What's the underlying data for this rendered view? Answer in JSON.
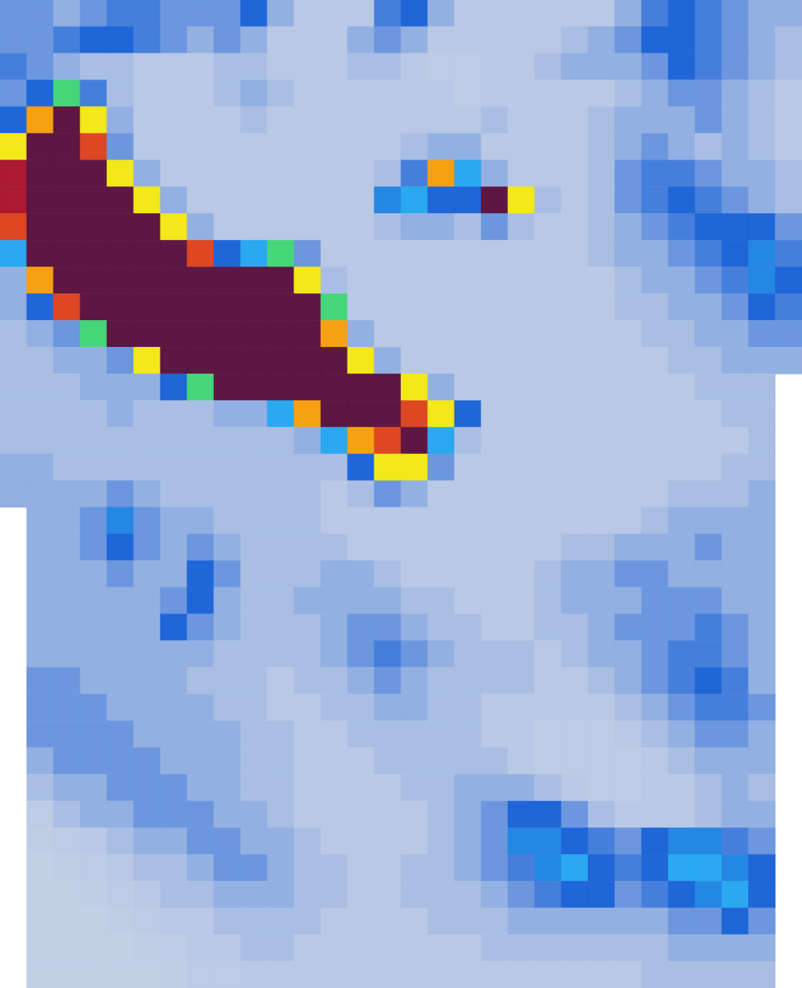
{
  "chart_data": {
    "type": "heatmap",
    "tick_labels": false,
    "color_range": [
      0,
      1
    ],
    "cells": [
      [
        0.2,
        0.2,
        0.15,
        0.2,
        0.25,
        0.25,
        0.2,
        0.2,
        0.2,
        0.3,
        0.15,
        0.1,
        0.1,
        0.1,
        0.25,
        0.3,
        0.15,
        0.1,
        0.1,
        0.1,
        0.1,
        0.1,
        0.1,
        0.15,
        0.25,
        0.3,
        0.25,
        0.2,
        0.15,
        0.15
      ],
      [
        0.2,
        0.2,
        0.25,
        0.3,
        0.3,
        0.25,
        0.2,
        0.15,
        0.2,
        0.15,
        0.1,
        0.1,
        0.1,
        0.15,
        0.2,
        0.15,
        0.1,
        0.1,
        0.1,
        0.1,
        0.1,
        0.12,
        0.15,
        0.2,
        0.3,
        0.3,
        0.25,
        0.2,
        0.15,
        0.12
      ],
      [
        0.25,
        0.2,
        0.15,
        0.12,
        0.12,
        0.1,
        0.1,
        0.1,
        0.12,
        0.12,
        0.1,
        0.1,
        0.1,
        0.12,
        0.12,
        0.1,
        0.08,
        0.08,
        0.1,
        0.1,
        0.12,
        0.15,
        0.15,
        0.15,
        0.2,
        0.3,
        0.25,
        0.2,
        0.15,
        0.12
      ],
      [
        0.2,
        0.3,
        0.5,
        0.25,
        0.12,
        0.1,
        0.1,
        0.1,
        0.12,
        0.15,
        0.12,
        0.1,
        0.1,
        0.1,
        0.1,
        0.1,
        0.1,
        0.08,
        0.1,
        0.1,
        0.1,
        0.1,
        0.1,
        0.12,
        0.15,
        0.2,
        0.2,
        0.15,
        0.12,
        0.1
      ],
      [
        0.3,
        0.7,
        1,
        0.6,
        0.15,
        0.1,
        0.1,
        0.1,
        0.1,
        0.12,
        0.1,
        0.1,
        0.1,
        0.1,
        0.1,
        0.1,
        0.1,
        0.1,
        0.12,
        0.1,
        0.1,
        0.1,
        0.12,
        0.15,
        0.15,
        0.15,
        0.2,
        0.15,
        0.12,
        0.1
      ],
      [
        0.6,
        1,
        1,
        0.8,
        0.2,
        0.1,
        0.1,
        0.1,
        0.1,
        0.1,
        0.1,
        0.1,
        0.1,
        0.1,
        0.1,
        0.12,
        0.15,
        0.15,
        0.1,
        0.1,
        0.1,
        0.1,
        0.12,
        0.15,
        0.2,
        0.15,
        0.12,
        0.15,
        0.12,
        0.1
      ],
      [
        0.9,
        1,
        1,
        1,
        0.6,
        0.15,
        0.1,
        0.1,
        0.1,
        0.1,
        0.1,
        0.1,
        0.1,
        0.1,
        0.12,
        0.25,
        0.7,
        0.4,
        0.15,
        0.1,
        0.1,
        0.1,
        0.12,
        0.2,
        0.25,
        0.25,
        0.2,
        0.15,
        0.15,
        0.12
      ],
      [
        0.9,
        1,
        1,
        1,
        1,
        0.6,
        0.15,
        0.1,
        0.1,
        0.1,
        0.1,
        0.1,
        0.1,
        0.1,
        0.35,
        0.4,
        0.3,
        0.3,
        1,
        0.6,
        0.12,
        0.1,
        0.12,
        0.2,
        0.25,
        0.3,
        0.25,
        0.2,
        0.15,
        0.12
      ],
      [
        0.8,
        1,
        1,
        1,
        1,
        1,
        0.6,
        0.15,
        0.1,
        0.1,
        0.1,
        0.1,
        0.1,
        0.1,
        0.12,
        0.15,
        0.15,
        0.12,
        0.2,
        0.12,
        0.1,
        0.1,
        0.12,
        0.15,
        0.2,
        0.25,
        0.3,
        0.3,
        0.3,
        0.2
      ],
      [
        0.4,
        1,
        1,
        1,
        1,
        1,
        1,
        0.8,
        0.3,
        0.4,
        0.5,
        0.2,
        0.1,
        0.1,
        0.1,
        0.1,
        0.1,
        0.1,
        0.1,
        0.1,
        0.1,
        0.1,
        0.12,
        0.15,
        0.15,
        0.2,
        0.25,
        0.3,
        0.35,
        0.25
      ],
      [
        0.15,
        0.7,
        1,
        1,
        1,
        1,
        1,
        1,
        1,
        1,
        1,
        0.6,
        0.12,
        0.1,
        0.1,
        0.1,
        0.1,
        0.1,
        0.1,
        0.1,
        0.1,
        0.1,
        0.1,
        0.12,
        0.15,
        0.15,
        0.2,
        0.25,
        0.35,
        0.3
      ],
      [
        0.15,
        0.3,
        0.8,
        1,
        1,
        1,
        1,
        1,
        1,
        1,
        1,
        1,
        0.5,
        0.1,
        0.1,
        0.1,
        0.1,
        0.1,
        0.1,
        0.1,
        0.1,
        0.1,
        0.1,
        0.12,
        0.12,
        0.15,
        0.15,
        0.2,
        0.3,
        0.25
      ],
      [
        0.12,
        0.15,
        0.2,
        0.5,
        1,
        1,
        1,
        1,
        1,
        1,
        1,
        1,
        0.7,
        0.15,
        0.1,
        0.1,
        0.1,
        0.1,
        0.1,
        0.1,
        0.1,
        0.1,
        0.1,
        0.1,
        0.12,
        0.12,
        0.15,
        0.15,
        0.2,
        0.2
      ],
      [
        0.12,
        0.12,
        0.15,
        0.15,
        0.2,
        0.6,
        1,
        1,
        1,
        1,
        1,
        1,
        1,
        0.6,
        0.15,
        0.1,
        0.1,
        0.1,
        0.1,
        0.1,
        0.1,
        0.1,
        0.1,
        0.1,
        0.1,
        0.12,
        0.12,
        0.15,
        0.15,
        0.15
      ],
      [
        0.12,
        0.12,
        0.12,
        0.15,
        0.15,
        0.15,
        0.3,
        0.5,
        1,
        1,
        1,
        1,
        1,
        1,
        1,
        0.6,
        0.15,
        0.1,
        0.1,
        0.1,
        0.1,
        0.1,
        0.1,
        0.1,
        0.1,
        0.1,
        0.12,
        0.12,
        0.12,
        null
      ],
      [
        0.12,
        0.12,
        0.12,
        0.12,
        0.15,
        0.12,
        0.12,
        0.12,
        0.15,
        0.15,
        0.4,
        0.7,
        1,
        1,
        1,
        0.8,
        0.6,
        0.3,
        0.1,
        0.1,
        0.1,
        0.1,
        0.1,
        0.1,
        0.1,
        0.1,
        0.1,
        0.12,
        0.12,
        null
      ],
      [
        0.12,
        0.12,
        0.12,
        0.12,
        0.12,
        0.12,
        0.12,
        0.12,
        0.12,
        0.12,
        0.12,
        0.15,
        0.4,
        0.7,
        0.8,
        1,
        0.4,
        0.12,
        0.1,
        0.1,
        0.1,
        0.1,
        0.1,
        0.1,
        0.1,
        0.1,
        0.1,
        0.1,
        0.12,
        null
      ],
      [
        0.15,
        0.15,
        0.12,
        0.12,
        0.12,
        0.12,
        0.12,
        0.12,
        0.12,
        0.12,
        0.12,
        0.12,
        0.12,
        0.3,
        0.6,
        0.6,
        0.2,
        0.1,
        0.1,
        0.1,
        0.1,
        0.1,
        0.1,
        0.1,
        0.1,
        0.1,
        0.1,
        0.12,
        0.12,
        null
      ],
      [
        0.15,
        0.15,
        0.15,
        0.15,
        0.2,
        0.15,
        0.12,
        0.12,
        0.12,
        0.12,
        0.12,
        0.12,
        0.1,
        0.12,
        0.2,
        0.15,
        0.1,
        0.1,
        0.1,
        0.1,
        0.1,
        0.1,
        0.1,
        0.1,
        0.1,
        0.12,
        0.12,
        0.12,
        0.15,
        null
      ],
      [
        null,
        0.15,
        0.15,
        0.2,
        0.35,
        0.2,
        0.15,
        0.15,
        0.12,
        0.12,
        0.12,
        0.12,
        0.1,
        0.1,
        0.1,
        0.1,
        0.1,
        0.1,
        0.1,
        0.1,
        0.1,
        0.1,
        0.1,
        0.1,
        0.12,
        0.15,
        0.15,
        0.15,
        0.15,
        null
      ],
      [
        null,
        0.15,
        0.15,
        0.2,
        0.3,
        0.2,
        0.15,
        0.2,
        0.15,
        0.12,
        0.12,
        0.12,
        0.12,
        0.1,
        0.1,
        0.1,
        0.1,
        0.1,
        0.1,
        0.1,
        0.1,
        0.12,
        0.12,
        0.15,
        0.15,
        0.15,
        0.2,
        0.15,
        0.15,
        null
      ],
      [
        null,
        0.15,
        0.15,
        0.15,
        0.2,
        0.15,
        0.15,
        0.3,
        0.2,
        0.12,
        0.12,
        0.12,
        0.15,
        0.15,
        0.12,
        0.1,
        0.1,
        0.1,
        0.1,
        0.1,
        0.12,
        0.15,
        0.15,
        0.2,
        0.2,
        0.15,
        0.15,
        0.15,
        0.15,
        null
      ],
      [
        null,
        0.15,
        0.15,
        0.15,
        0.15,
        0.15,
        0.2,
        0.3,
        0.15,
        0.12,
        0.12,
        0.15,
        0.15,
        0.15,
        0.15,
        0.12,
        0.12,
        0.1,
        0.1,
        0.1,
        0.12,
        0.15,
        0.15,
        0.15,
        0.2,
        0.2,
        0.2,
        0.15,
        0.15,
        null
      ],
      [
        null,
        0.15,
        0.15,
        0.15,
        0.15,
        0.15,
        0.3,
        0.2,
        0.15,
        0.12,
        0.12,
        0.12,
        0.15,
        0.2,
        0.2,
        0.15,
        0.12,
        0.12,
        0.1,
        0.1,
        0.12,
        0.12,
        0.15,
        0.2,
        0.2,
        0.2,
        0.25,
        0.2,
        0.15,
        null
      ],
      [
        null,
        0.15,
        0.15,
        0.15,
        0.15,
        0.15,
        0.15,
        0.15,
        0.12,
        0.12,
        0.12,
        0.12,
        0.15,
        0.2,
        0.25,
        0.2,
        0.15,
        0.12,
        0.12,
        0.12,
        0.1,
        0.12,
        0.15,
        0.15,
        0.2,
        0.25,
        0.25,
        0.2,
        0.15,
        null
      ],
      [
        null,
        0.2,
        0.2,
        0.15,
        0.15,
        0.15,
        0.15,
        0.12,
        0.12,
        0.12,
        0.1,
        0.12,
        0.12,
        0.15,
        0.2,
        0.15,
        0.12,
        0.12,
        0.12,
        0.12,
        0.1,
        0.1,
        0.12,
        0.15,
        0.2,
        0.25,
        0.3,
        0.25,
        0.15,
        null
      ],
      [
        null,
        0.2,
        0.2,
        0.2,
        0.15,
        0.15,
        0.15,
        0.15,
        0.12,
        0.12,
        0.1,
        0.1,
        0.12,
        0.12,
        0.15,
        0.15,
        0.12,
        0.12,
        0.1,
        0.1,
        0.1,
        0.1,
        0.1,
        0.12,
        0.15,
        0.2,
        0.25,
        0.25,
        0.2,
        null
      ],
      [
        null,
        0.2,
        0.2,
        0.2,
        0.2,
        0.15,
        0.15,
        0.15,
        0.15,
        0.12,
        0.12,
        0.1,
        0.1,
        0.12,
        0.12,
        0.12,
        0.12,
        0.12,
        0.1,
        0.1,
        0.08,
        0.08,
        0.08,
        0.1,
        0.12,
        0.15,
        0.2,
        0.2,
        0.15,
        null
      ],
      [
        null,
        0.15,
        0.2,
        0.2,
        0.2,
        0.2,
        0.15,
        0.15,
        0.15,
        0.12,
        0.12,
        0.1,
        0.1,
        0.1,
        0.12,
        0.12,
        0.12,
        0.12,
        0.12,
        0.1,
        0.08,
        0.08,
        0.08,
        0.08,
        0.1,
        0.12,
        0.15,
        0.15,
        0.15,
        null
      ],
      [
        null,
        0.12,
        0.15,
        0.15,
        0.2,
        0.2,
        0.2,
        0.15,
        0.15,
        0.12,
        0.12,
        0.1,
        0.1,
        0.1,
        0.1,
        0.12,
        0.12,
        0.15,
        0.15,
        0.15,
        0.12,
        0.1,
        0.08,
        0.08,
        0.1,
        0.1,
        0.12,
        0.15,
        0.12,
        null
      ],
      [
        null,
        0.08,
        0.12,
        0.15,
        0.15,
        0.2,
        0.2,
        0.2,
        0.15,
        0.15,
        0.12,
        0.1,
        0.1,
        0.1,
        0.1,
        0.1,
        0.12,
        0.15,
        0.2,
        0.3,
        0.3,
        0.2,
        0.12,
        0.1,
        0.1,
        0.1,
        0.12,
        0.15,
        0.15,
        null
      ],
      [
        null,
        0.06,
        0.08,
        0.1,
        0.12,
        0.15,
        0.15,
        0.2,
        0.2,
        0.15,
        0.15,
        0.12,
        0.1,
        0.1,
        0.1,
        0.1,
        0.12,
        0.15,
        0.2,
        0.35,
        0.35,
        0.3,
        0.25,
        0.2,
        0.3,
        0.35,
        0.35,
        0.25,
        0.2,
        null
      ],
      [
        null,
        0.05,
        0.06,
        0.08,
        0.1,
        0.12,
        0.12,
        0.15,
        0.2,
        0.2,
        0.15,
        0.12,
        0.12,
        0.1,
        0.1,
        0.12,
        0.12,
        0.15,
        0.2,
        0.25,
        0.35,
        0.4,
        0.3,
        0.25,
        0.3,
        0.4,
        0.4,
        0.35,
        0.3,
        null
      ],
      [
        null,
        0.05,
        0.05,
        0.06,
        0.08,
        0.1,
        0.12,
        0.12,
        0.15,
        0.15,
        0.15,
        0.12,
        0.12,
        0.1,
        0.1,
        0.12,
        0.12,
        0.12,
        0.15,
        0.2,
        0.25,
        0.3,
        0.3,
        0.2,
        0.25,
        0.3,
        0.35,
        0.4,
        0.3,
        null
      ],
      [
        null,
        0.05,
        0.05,
        0.05,
        0.06,
        0.08,
        0.1,
        0.1,
        0.12,
        0.12,
        0.12,
        0.12,
        0.1,
        0.1,
        0.1,
        0.1,
        0.12,
        0.12,
        0.12,
        0.15,
        0.15,
        0.15,
        0.15,
        0.15,
        0.15,
        0.2,
        0.2,
        0.3,
        0.2,
        null
      ],
      [
        null,
        0.05,
        0.05,
        0.05,
        0.05,
        0.06,
        0.08,
        0.1,
        0.1,
        0.12,
        0.12,
        0.1,
        0.1,
        0.1,
        0.1,
        0.1,
        0.1,
        0.1,
        0.12,
        0.12,
        0.12,
        0.12,
        0.12,
        0.12,
        0.12,
        0.15,
        0.15,
        0.15,
        0.15,
        null
      ],
      [
        null,
        0.05,
        0.05,
        0.05,
        0.05,
        0.05,
        0.06,
        0.08,
        0.08,
        0.1,
        0.1,
        0.1,
        0.1,
        0.1,
        0.1,
        0.1,
        0.1,
        0.1,
        0.1,
        0.1,
        0.1,
        0.1,
        0.1,
        0.1,
        0.12,
        0.12,
        0.12,
        0.12,
        0.12,
        null
      ]
    ]
  }
}
